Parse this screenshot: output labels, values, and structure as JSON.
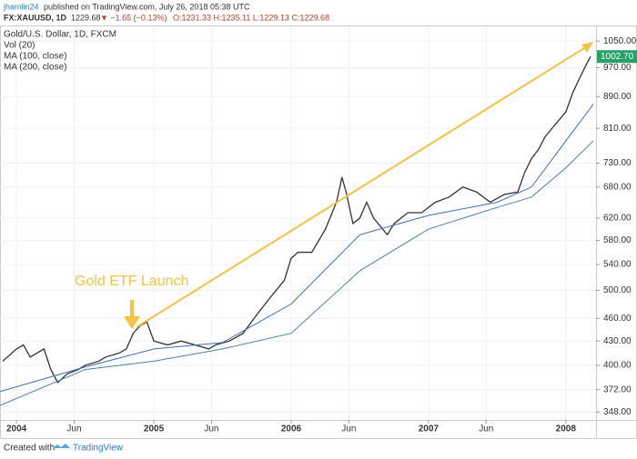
{
  "header": {
    "user": "jhamlin24",
    "published": "published on TradingView.com, July 26, 2018 05:38 UTC",
    "symbol": "FX:XAUUSD, 1D",
    "last": "1229.68",
    "change": "▼ −1.65 (−0.13%)",
    "ohlc": "O:1231.33 H:1235.11 L:1229.13 C:1229.68"
  },
  "footer": {
    "created": "Created with",
    "brand": "TradingView"
  },
  "chart_data": {
    "type": "line",
    "log_scale": true,
    "grid": true,
    "indicators": [
      "Vol (20)"
    ],
    "annotations": [
      {
        "text": "Gold ETF Launch",
        "color": "#f5c242"
      }
    ],
    "last_price": {
      "value": 1002.7,
      "label": "1002.70"
    },
    "last_price_color": "#26a269",
    "xlim": [
      2003.88,
      2008.22
    ],
    "ylim": [
      340,
      1097
    ],
    "xticks": [
      {
        "value": 2004.0,
        "label": "2004"
      },
      {
        "value": 2004.42,
        "label": "Jun"
      },
      {
        "value": 2005.0,
        "label": "2005"
      },
      {
        "value": 2005.42,
        "label": "Jun"
      },
      {
        "value": 2006.0,
        "label": "2006"
      },
      {
        "value": 2006.42,
        "label": "Jun"
      },
      {
        "value": 2007.0,
        "label": "2007"
      },
      {
        "value": 2007.42,
        "label": "Jun"
      },
      {
        "value": 2008.0,
        "label": "2008"
      }
    ],
    "yticks": [
      {
        "value": 348,
        "label": "348.00"
      },
      {
        "value": 372,
        "label": "372.00"
      },
      {
        "value": 400,
        "label": "400.00"
      },
      {
        "value": 430,
        "label": "430.00"
      },
      {
        "value": 460,
        "label": "460.00"
      },
      {
        "value": 500,
        "label": "500.00"
      },
      {
        "value": 540,
        "label": "540.00"
      },
      {
        "value": 580,
        "label": "580.00"
      },
      {
        "value": 620,
        "label": "620.00"
      },
      {
        "value": 680,
        "label": "680.00"
      },
      {
        "value": 730,
        "label": "730.00"
      },
      {
        "value": 810,
        "label": "810.00"
      },
      {
        "value": 890,
        "label": "890.00"
      },
      {
        "value": 970,
        "label": "970.00"
      },
      {
        "value": 1050,
        "label": "1050.00"
      }
    ],
    "series": [
      {
        "name": "Gold/U.S. Dollar, 1D, FXCM",
        "color": "#333333",
        "x": [
          2003.9,
          2004.0,
          2004.05,
          2004.1,
          2004.2,
          2004.25,
          2004.3,
          2004.37,
          2004.45,
          2004.5,
          2004.6,
          2004.65,
          2004.75,
          2004.8,
          2004.85,
          2004.9,
          2004.95,
          2005.0,
          2005.1,
          2005.2,
          2005.3,
          2005.4,
          2005.45,
          2005.55,
          2005.65,
          2005.75,
          2005.85,
          2005.95,
          2006.0,
          2006.05,
          2006.15,
          2006.25,
          2006.33,
          2006.37,
          2006.4,
          2006.45,
          2006.5,
          2006.55,
          2006.6,
          2006.7,
          2006.75,
          2006.85,
          2006.95,
          2007.05,
          2007.15,
          2007.25,
          2007.35,
          2007.45,
          2007.55,
          2007.65,
          2007.7,
          2007.75,
          2007.8,
          2007.85,
          2007.9,
          2007.95,
          2008.0,
          2008.05,
          2008.1,
          2008.15,
          2008.18
        ],
        "values": [
          405,
          420,
          425,
          410,
          420,
          395,
          380,
          390,
          395,
          400,
          405,
          410,
          415,
          420,
          440,
          450,
          455,
          430,
          425,
          430,
          425,
          420,
          425,
          430,
          440,
          465,
          490,
          515,
          550,
          560,
          560,
          600,
          650,
          700,
          670,
          610,
          620,
          650,
          620,
          590,
          610,
          630,
          630,
          650,
          660,
          680,
          670,
          650,
          665,
          670,
          710,
          740,
          760,
          790,
          810,
          830,
          850,
          900,
          940,
          980,
          1002.7
        ]
      },
      {
        "name": "MA (100, close)",
        "color": "#3b6fb6",
        "x": [
          2003.88,
          2004.5,
          2005.0,
          2005.5,
          2006.0,
          2006.5,
          2007.0,
          2007.5,
          2007.75,
          2008.0,
          2008.2
        ],
        "values": [
          370,
          398,
          420,
          428,
          480,
          590,
          625,
          650,
          680,
          780,
          870
        ]
      },
      {
        "name": "MA (200, close)",
        "color": "#4a7fa8",
        "x": [
          2003.88,
          2004.5,
          2005.0,
          2005.5,
          2006.0,
          2006.5,
          2007.0,
          2007.5,
          2007.75,
          2008.0,
          2008.2
        ],
        "values": [
          355,
          395,
          405,
          420,
          440,
          530,
          600,
          640,
          660,
          720,
          780
        ]
      }
    ]
  }
}
